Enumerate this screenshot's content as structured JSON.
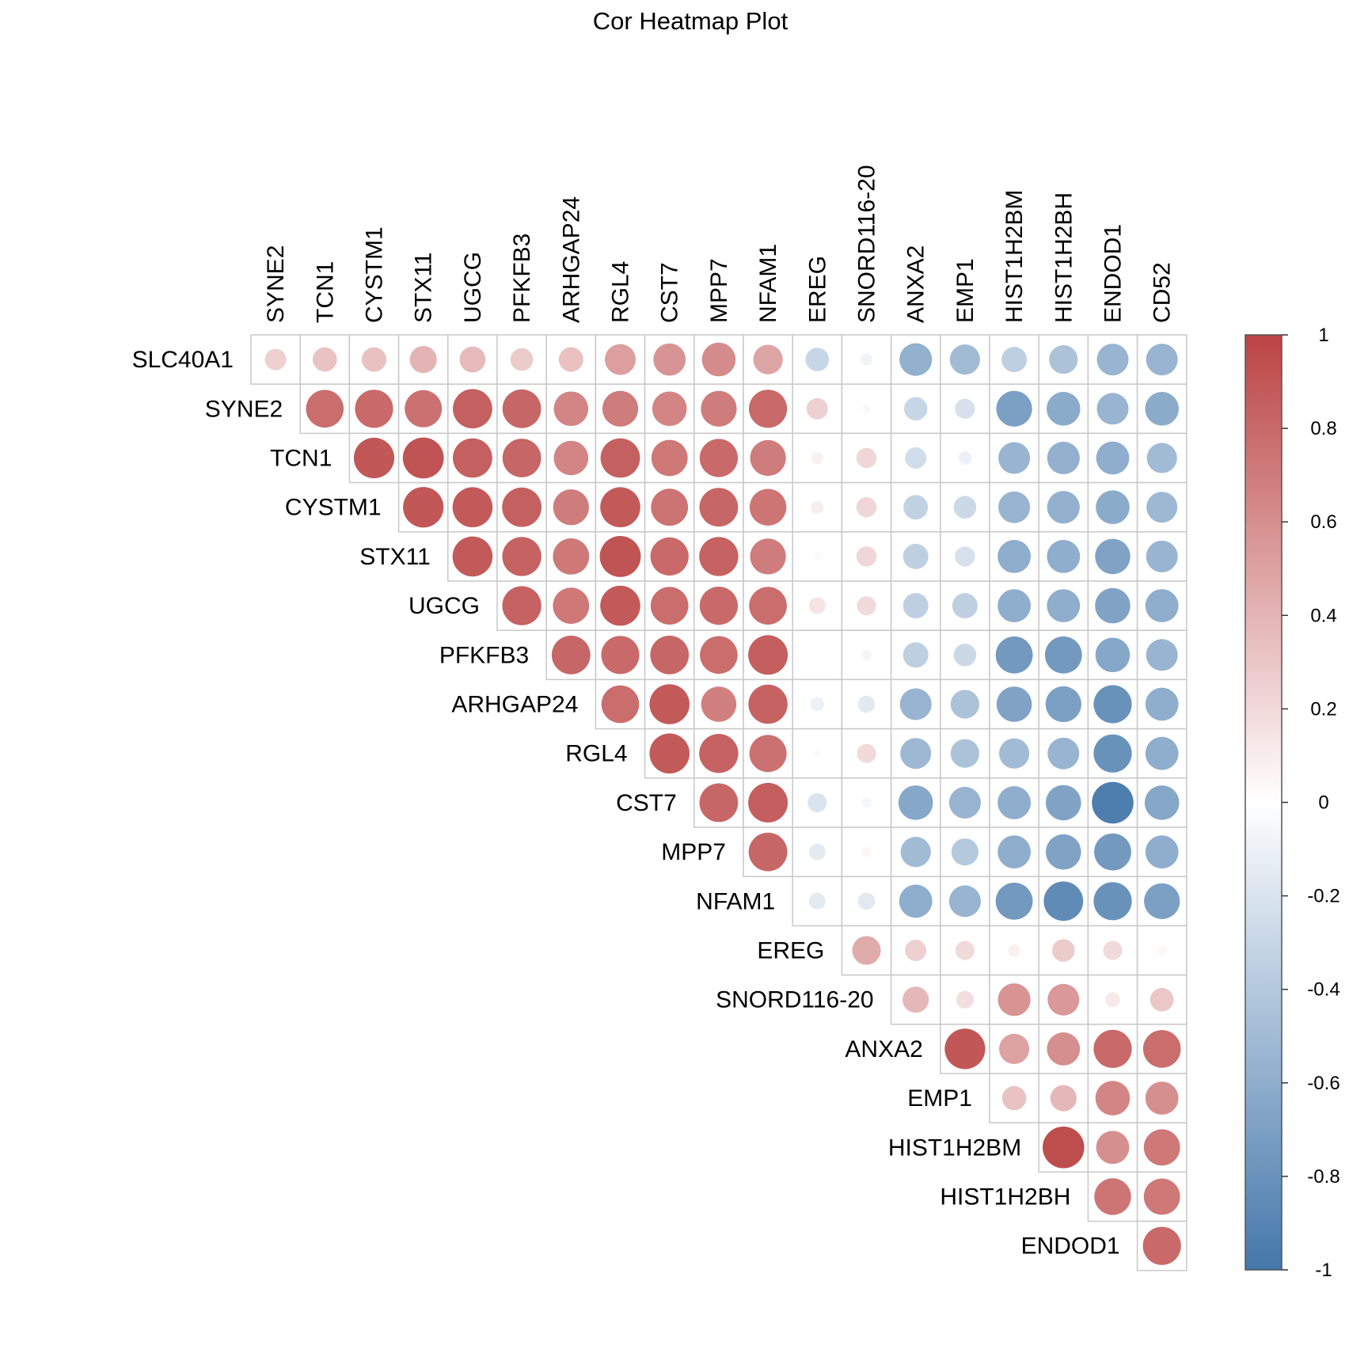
{
  "chart_data": {
    "type": "heatmap",
    "title": "Cor Heatmap Plot",
    "shape": "circle",
    "layout": "upper-triangle",
    "row_labels": [
      "SLC40A1",
      "SYNE2",
      "TCN1",
      "CYSTM1",
      "STX11",
      "UGCG",
      "PFKFB3",
      "ARHGAP24",
      "RGL4",
      "CST7",
      "MPP7",
      "NFAM1",
      "EREG",
      "SNORD116-20",
      "ANXA2",
      "EMP1",
      "HIST1H2BM",
      "HIST1H2BH",
      "ENDOD1"
    ],
    "col_labels": [
      "SYNE2",
      "TCN1",
      "CYSTM1",
      "STX11",
      "UGCG",
      "PFKFB3",
      "ARHGAP24",
      "RGL4",
      "CST7",
      "MPP7",
      "NFAM1",
      "EREG",
      "SNORD116-20",
      "ANXA2",
      "EMP1",
      "HIST1H2BM",
      "HIST1H2BH",
      "ENDOD1",
      "CD52"
    ],
    "values": [
      [
        0.25,
        0.32,
        0.33,
        0.4,
        0.37,
        0.28,
        0.33,
        0.52,
        0.57,
        0.62,
        0.48,
        -0.3,
        -0.08,
        -0.58,
        -0.5,
        -0.35,
        -0.45,
        -0.55,
        -0.55
      ],
      [
        null,
        0.78,
        0.8,
        0.76,
        0.85,
        0.82,
        0.65,
        0.7,
        0.65,
        0.7,
        0.8,
        0.25,
        0.04,
        -0.3,
        -0.22,
        -0.7,
        -0.62,
        -0.55,
        -0.62
      ],
      [
        null,
        null,
        0.9,
        0.92,
        0.85,
        0.82,
        0.65,
        0.85,
        0.72,
        0.8,
        0.7,
        0.08,
        0.22,
        -0.25,
        -0.1,
        -0.55,
        -0.58,
        -0.6,
        -0.5
      ],
      [
        null,
        null,
        null,
        0.9,
        0.88,
        0.85,
        0.7,
        0.88,
        0.75,
        0.82,
        0.74,
        0.09,
        0.22,
        -0.33,
        -0.28,
        -0.55,
        -0.58,
        -0.62,
        -0.52
      ],
      [
        null,
        null,
        null,
        null,
        0.88,
        0.84,
        0.72,
        0.92,
        0.8,
        0.84,
        0.7,
        0.03,
        0.22,
        -0.35,
        -0.22,
        -0.6,
        -0.6,
        -0.68,
        -0.55
      ],
      [
        null,
        null,
        null,
        null,
        null,
        0.84,
        0.72,
        0.88,
        0.78,
        0.8,
        0.78,
        0.15,
        0.2,
        -0.35,
        -0.35,
        -0.6,
        -0.6,
        -0.68,
        -0.6
      ],
      [
        null,
        null,
        null,
        null,
        null,
        null,
        0.82,
        0.8,
        0.82,
        0.78,
        0.86,
        0.0,
        0.06,
        -0.35,
        -0.28,
        -0.75,
        -0.75,
        -0.65,
        -0.55
      ],
      [
        null,
        null,
        null,
        null,
        null,
        null,
        null,
        0.78,
        0.88,
        0.68,
        0.84,
        -0.1,
        -0.16,
        -0.55,
        -0.45,
        -0.68,
        -0.7,
        -0.8,
        -0.6
      ],
      [
        null,
        null,
        null,
        null,
        null,
        null,
        null,
        null,
        0.88,
        0.84,
        0.76,
        0.03,
        0.2,
        -0.52,
        -0.45,
        -0.5,
        -0.55,
        -0.8,
        -0.6
      ],
      [
        null,
        null,
        null,
        null,
        null,
        null,
        null,
        null,
        null,
        0.82,
        0.86,
        -0.2,
        -0.06,
        -0.65,
        -0.55,
        -0.6,
        -0.68,
        -0.95,
        -0.65
      ],
      [
        null,
        null,
        null,
        null,
        null,
        null,
        null,
        null,
        null,
        null,
        0.82,
        -0.15,
        0.05,
        -0.5,
        -0.4,
        -0.6,
        -0.68,
        -0.75,
        -0.6
      ],
      [
        null,
        null,
        null,
        null,
        null,
        null,
        null,
        null,
        null,
        null,
        null,
        -0.15,
        -0.16,
        -0.6,
        -0.55,
        -0.75,
        -0.85,
        -0.8,
        -0.7
      ],
      [
        null,
        null,
        null,
        null,
        null,
        null,
        null,
        null,
        null,
        null,
        null,
        null,
        0.45,
        0.25,
        0.2,
        0.08,
        0.28,
        0.2,
        0.05
      ],
      [
        null,
        null,
        null,
        null,
        null,
        null,
        null,
        null,
        null,
        null,
        null,
        null,
        null,
        0.38,
        0.17,
        0.58,
        0.55,
        0.12,
        0.3
      ],
      [
        null,
        null,
        null,
        null,
        null,
        null,
        null,
        null,
        null,
        null,
        null,
        null,
        null,
        null,
        0.9,
        0.5,
        0.6,
        0.8,
        0.78
      ],
      [
        null,
        null,
        null,
        null,
        null,
        null,
        null,
        null,
        null,
        null,
        null,
        null,
        null,
        null,
        null,
        0.32,
        0.38,
        0.65,
        0.6
      ],
      [
        null,
        null,
        null,
        null,
        null,
        null,
        null,
        null,
        null,
        null,
        null,
        null,
        null,
        null,
        null,
        null,
        0.95,
        0.6,
        0.72
      ],
      [
        null,
        null,
        null,
        null,
        null,
        null,
        null,
        null,
        null,
        null,
        null,
        null,
        null,
        null,
        null,
        null,
        null,
        0.74,
        0.72
      ],
      [
        null,
        null,
        null,
        null,
        null,
        null,
        null,
        null,
        null,
        null,
        null,
        null,
        null,
        null,
        null,
        null,
        null,
        null,
        0.8
      ]
    ],
    "colorbar": {
      "range": [
        -1,
        1
      ],
      "ticks": [
        "1",
        "0.8",
        "0.6",
        "0.4",
        "0.2",
        "0",
        "-0.2",
        "-0.4",
        "-0.6",
        "-0.8",
        "-1"
      ],
      "low_color": "#4477AA",
      "mid_color": "#FFFFFF",
      "high_color": "#BB4444"
    },
    "grid_color": "#C8C8C8"
  }
}
